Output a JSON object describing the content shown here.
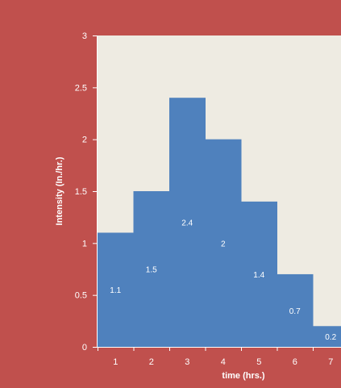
{
  "chart_data": {
    "type": "bar",
    "categories": [
      "1",
      "2",
      "3",
      "4",
      "5",
      "6",
      "7"
    ],
    "values": [
      1.1,
      1.5,
      2.4,
      2,
      1.4,
      0.7,
      0.2
    ],
    "data_labels": [
      "1.1",
      "1.5",
      "2.4",
      "2",
      "1.4",
      "0.7",
      "0.2"
    ],
    "title": "",
    "xlabel": "time (hrs.)",
    "ylabel": "Intensity  (In./hr.)",
    "ylim": [
      0,
      3
    ],
    "yticks": [
      "0",
      "0.5",
      "1",
      "1.5",
      "2",
      "2.5",
      "3"
    ],
    "grid": false,
    "legend": "none",
    "colors": {
      "page_background": "#c0504d",
      "plot_background": "#eeebe2",
      "bar_fill": "#4f81bd",
      "text": "#ffffff"
    }
  }
}
